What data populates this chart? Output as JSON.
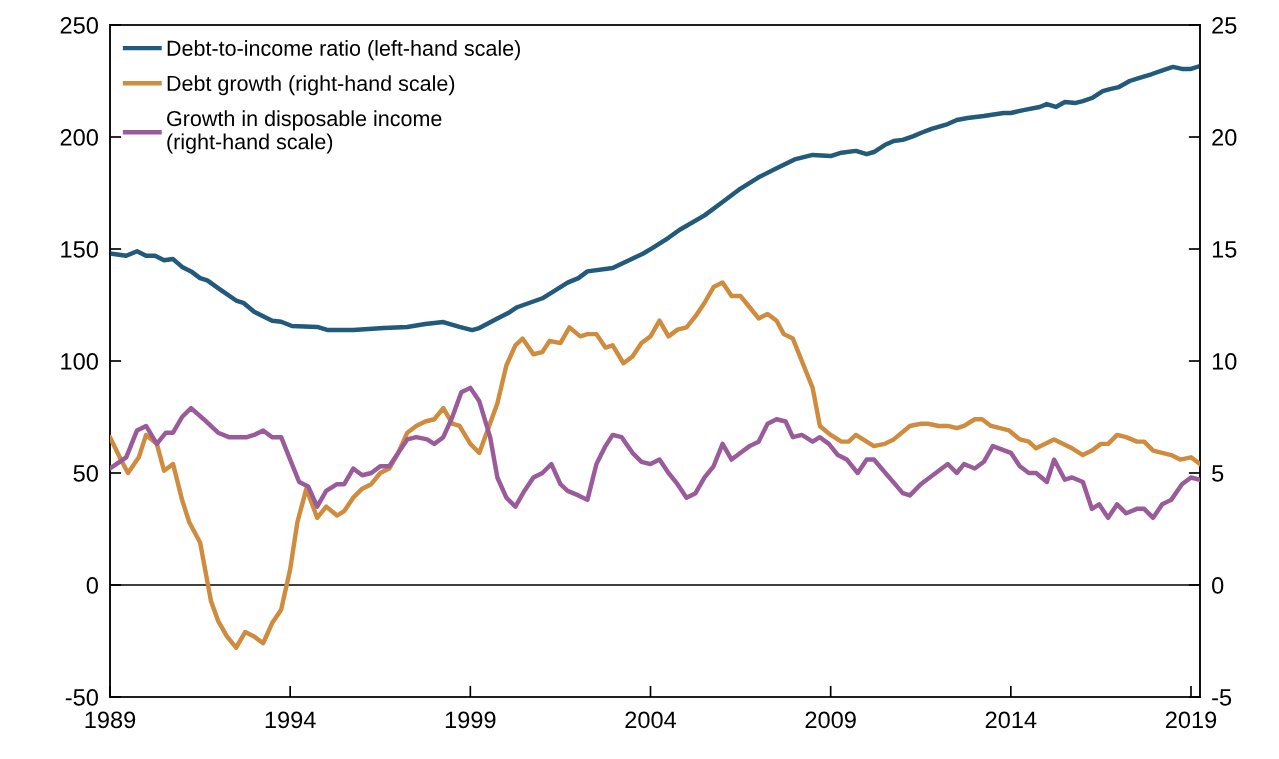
{
  "chart_data": {
    "type": "line",
    "xlim": [
      1989,
      2019.25
    ],
    "xticks": [
      1989,
      1994,
      1999,
      2004,
      2009,
      2014,
      2019
    ],
    "ylim": [
      -50,
      250
    ],
    "yticks": [
      -50,
      0,
      50,
      100,
      150,
      200,
      250
    ],
    "y2lim": [
      -5,
      25
    ],
    "y2ticks": [
      -5,
      0,
      5,
      10,
      15,
      20,
      25
    ],
    "grid": false,
    "legend": "top left",
    "line_style": "solid",
    "marker": "none",
    "ref_lines": [
      {
        "axis": "y",
        "value": 0,
        "color": "#000000"
      }
    ],
    "series": [
      {
        "name": "Debt-to-income ratio (left-hand scale)",
        "color": "#215a7b",
        "x": [
          1989.0,
          1989.45,
          1989.75,
          1990.0,
          1990.25,
          1990.5,
          1990.75,
          1991.0,
          1991.25,
          1991.5,
          1991.7,
          1992.05,
          1992.5,
          1992.7,
          1993.0,
          1993.5,
          1993.75,
          1994.05,
          1994.75,
          1995.05,
          1995.75,
          1996.6,
          1997.25,
          1997.75,
          1998.25,
          1998.7,
          1999.05,
          1999.25,
          1999.75,
          2000.05,
          2000.3,
          2001.0,
          2001.2,
          2001.7,
          2002.0,
          2002.25,
          2002.95,
          2003.8,
          2004.05,
          2004.5,
          2004.8,
          2005.5,
          2006.0,
          2006.5,
          2007.0,
          2007.5,
          2008.0,
          2008.5,
          2009.0,
          2009.3,
          2009.7,
          2010.0,
          2010.2,
          2010.5,
          2010.75,
          2011.0,
          2011.3,
          2011.5,
          2011.8,
          2012.25,
          2012.5,
          2012.8,
          2013.25,
          2013.8,
          2014.0,
          2014.35,
          2014.8,
          2015.0,
          2015.25,
          2015.5,
          2015.8,
          2016.0,
          2016.25,
          2016.55,
          2016.75,
          2017.0,
          2017.3,
          2017.55,
          2017.9,
          2018.25,
          2018.5,
          2018.75,
          2019.0,
          2019.25
        ],
        "values": [
          148,
          147,
          149,
          147,
          147,
          145,
          145.5,
          142,
          140,
          137,
          136,
          132,
          127,
          126,
          122,
          118,
          117.5,
          115.6,
          115.2,
          113.8,
          113.8,
          114.7,
          115.2,
          116.5,
          117.4,
          115.2,
          113.8,
          114.7,
          119,
          121.4,
          124,
          128,
          130,
          135,
          137,
          140,
          141.5,
          148,
          150.4,
          155,
          158.5,
          165,
          171,
          177,
          182,
          186,
          190,
          192,
          191.5,
          193,
          193.8,
          192.4,
          193.3,
          196.4,
          198.2,
          198.7,
          200.4,
          201.8,
          203.6,
          205.8,
          207.6,
          208.5,
          209.4,
          210.7,
          210.7,
          212,
          213.4,
          214.7,
          213.4,
          215.6,
          215.2,
          216,
          217.4,
          220.5,
          221.4,
          222.3,
          225,
          226.3,
          228,
          230,
          231.3,
          230.4,
          230.4,
          231.7
        ]
      },
      {
        "name": "Debt growth (right-hand scale)",
        "color": "#d08c3e",
        "axis": "y2",
        "x": [
          1989.0,
          1989.3,
          1989.5,
          1989.8,
          1990.0,
          1990.3,
          1990.5,
          1990.75,
          1991.0,
          1991.2,
          1991.5,
          1991.8,
          1992.0,
          1992.25,
          1992.5,
          1992.75,
          1993.0,
          1993.25,
          1993.5,
          1993.75,
          1994.0,
          1994.2,
          1994.45,
          1994.75,
          1995.0,
          1995.3,
          1995.5,
          1995.75,
          1996.0,
          1996.25,
          1996.5,
          1996.75,
          1997.0,
          1997.25,
          1997.5,
          1997.75,
          1998.0,
          1998.25,
          1998.5,
          1998.7,
          1999.0,
          1999.25,
          1999.75,
          2000.0,
          2000.25,
          2000.45,
          2000.75,
          2001.0,
          2001.2,
          2001.5,
          2001.75,
          2002.05,
          2002.25,
          2002.5,
          2002.75,
          2002.95,
          2003.25,
          2003.5,
          2003.75,
          2004.0,
          2004.25,
          2004.5,
          2004.75,
          2005.0,
          2005.25,
          2005.5,
          2005.75,
          2006.0,
          2006.25,
          2006.5,
          2006.75,
          2007.0,
          2007.25,
          2007.5,
          2007.7,
          2007.95,
          2008.5,
          2008.7,
          2009.0,
          2009.3,
          2009.5,
          2009.7,
          2010.0,
          2010.2,
          2010.5,
          2010.75,
          2011.2,
          2011.5,
          2011.7,
          2012.0,
          2012.25,
          2012.5,
          2012.7,
          2013.0,
          2013.2,
          2013.45,
          2013.7,
          2013.95,
          2014.25,
          2014.5,
          2014.7,
          2015.2,
          2015.7,
          2016.0,
          2016.25,
          2016.5,
          2016.7,
          2016.95,
          2017.2,
          2017.5,
          2017.7,
          2017.95,
          2018.45,
          2018.7,
          2019.0,
          2019.25
        ],
        "values": [
          6.6,
          5.6,
          5.0,
          5.7,
          6.7,
          6.3,
          5.1,
          5.4,
          3.8,
          2.8,
          1.9,
          -0.7,
          -1.6,
          -2.3,
          -2.8,
          -2.1,
          -2.3,
          -2.6,
          -1.7,
          -1.1,
          0.7,
          2.8,
          4.3,
          3.0,
          3.5,
          3.1,
          3.3,
          3.9,
          4.3,
          4.5,
          5.0,
          5.2,
          5.9,
          6.8,
          7.1,
          7.3,
          7.4,
          7.9,
          7.2,
          7.1,
          6.3,
          5.9,
          8.1,
          9.8,
          10.7,
          11.0,
          10.3,
          10.4,
          10.9,
          10.8,
          11.5,
          11.1,
          11.2,
          11.2,
          10.6,
          10.7,
          9.9,
          10.2,
          10.8,
          11.1,
          11.8,
          11.1,
          11.4,
          11.5,
          12.0,
          12.6,
          13.3,
          13.5,
          12.9,
          12.9,
          12.4,
          11.9,
          12.1,
          11.8,
          11.2,
          11.0,
          8.8,
          7.1,
          6.7,
          6.4,
          6.4,
          6.7,
          6.4,
          6.2,
          6.3,
          6.5,
          7.1,
          7.2,
          7.2,
          7.1,
          7.1,
          7.0,
          7.1,
          7.4,
          7.4,
          7.1,
          7.0,
          6.9,
          6.5,
          6.4,
          6.1,
          6.5,
          6.1,
          5.8,
          6.0,
          6.3,
          6.3,
          6.7,
          6.6,
          6.4,
          6.4,
          6.0,
          5.8,
          5.6,
          5.7,
          5.4
        ]
      },
      {
        "name": "Growth in disposable income\n(right-hand scale)",
        "color": "#9a5b9a",
        "axis": "y2",
        "x": [
          1989.0,
          1989.45,
          1989.75,
          1990.0,
          1990.3,
          1990.55,
          1990.75,
          1991.0,
          1991.25,
          1991.6,
          1992.0,
          1992.3,
          1992.8,
          1993.0,
          1993.25,
          1993.5,
          1993.75,
          1994.0,
          1994.25,
          1994.5,
          1994.75,
          1995.0,
          1995.3,
          1995.5,
          1995.75,
          1996.0,
          1996.25,
          1996.5,
          1996.75,
          1997.0,
          1997.25,
          1997.5,
          1997.8,
          1998.0,
          1998.25,
          1998.5,
          1998.75,
          1999.0,
          1999.25,
          1999.55,
          1999.75,
          2000.0,
          2000.25,
          2000.5,
          2000.75,
          2001.0,
          2001.25,
          2001.5,
          2001.7,
          2002.0,
          2002.25,
          2002.5,
          2002.75,
          2002.95,
          2003.2,
          2003.5,
          2003.75,
          2004.0,
          2004.25,
          2004.5,
          2004.75,
          2005.0,
          2005.25,
          2005.5,
          2005.75,
          2006.0,
          2006.25,
          2006.5,
          2006.75,
          2007.0,
          2007.25,
          2007.5,
          2007.75,
          2007.95,
          2008.2,
          2008.5,
          2008.7,
          2008.95,
          2009.2,
          2009.45,
          2009.75,
          2010.0,
          2010.2,
          2011.0,
          2011.2,
          2011.5,
          2012.25,
          2012.5,
          2012.7,
          2013.0,
          2013.25,
          2013.5,
          2014.0,
          2014.25,
          2014.5,
          2014.7,
          2015.0,
          2015.2,
          2015.5,
          2015.7,
          2016.0,
          2016.25,
          2016.45,
          2016.7,
          2016.95,
          2017.2,
          2017.5,
          2017.7,
          2017.95,
          2018.2,
          2018.45,
          2018.75,
          2019.0,
          2019.25
        ],
        "values": [
          5.2,
          5.7,
          6.9,
          7.1,
          6.3,
          6.8,
          6.8,
          7.5,
          7.9,
          7.4,
          6.8,
          6.6,
          6.6,
          6.7,
          6.9,
          6.6,
          6.6,
          5.6,
          4.6,
          4.4,
          3.5,
          4.2,
          4.5,
          4.5,
          5.2,
          4.9,
          5.0,
          5.3,
          5.3,
          5.9,
          6.5,
          6.6,
          6.5,
          6.3,
          6.6,
          7.5,
          8.6,
          8.8,
          8.2,
          6.6,
          4.8,
          3.9,
          3.5,
          4.2,
          4.8,
          5.0,
          5.4,
          4.5,
          4.2,
          4.0,
          3.8,
          5.4,
          6.2,
          6.7,
          6.6,
          5.9,
          5.5,
          5.4,
          5.6,
          5.0,
          4.5,
          3.9,
          4.1,
          4.8,
          5.3,
          6.3,
          5.6,
          5.9,
          6.2,
          6.4,
          7.2,
          7.4,
          7.3,
          6.6,
          6.7,
          6.4,
          6.6,
          6.3,
          5.8,
          5.6,
          5.0,
          5.6,
          5.6,
          4.1,
          4.0,
          4.5,
          5.4,
          5.0,
          5.4,
          5.2,
          5.5,
          6.2,
          5.9,
          5.3,
          5.0,
          5.0,
          4.6,
          5.6,
          4.7,
          4.8,
          4.6,
          3.4,
          3.6,
          3.0,
          3.6,
          3.2,
          3.4,
          3.4,
          3.0,
          3.6,
          3.8,
          4.5,
          4.8,
          4.7
        ]
      }
    ]
  }
}
